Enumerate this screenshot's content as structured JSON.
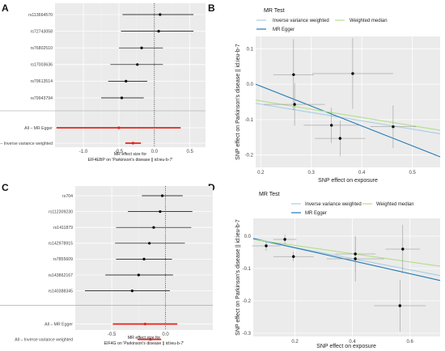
{
  "colors": {
    "panel_bg": "#ebebeb",
    "grid_major": "#ffffff",
    "snp_line": "#000000",
    "mr_line": "#e8221a",
    "ivw": "#a6cee3",
    "egger": "#1f78b4",
    "wm": "#b2df8a"
  },
  "panel_letters": {
    "a": "A",
    "b": "B",
    "c": "C",
    "d": "D"
  },
  "chart_data": [
    {
      "id": "A",
      "type": "forest",
      "xlabel_line1": "MR effect size for",
      "xlabel_line2": "EIF4EBP on 'Parkinson's disease || id:ieu-b-7'",
      "xlim": [
        -1.4,
        0.72
      ],
      "xticks": [
        -1.0,
        -0.5,
        0.0,
        0.5
      ],
      "xtick_labels": [
        "-1.0",
        "-0.5",
        "0.0",
        "0.5"
      ],
      "snps": [
        {
          "label": "rs113664570",
          "est": 0.08,
          "lo": -0.45,
          "hi": 0.55
        },
        {
          "label": "rs72743058",
          "est": 0.06,
          "lo": -0.47,
          "hi": 0.55
        },
        {
          "label": "rs76802510",
          "est": -0.18,
          "lo": -0.5,
          "hi": 0.12
        },
        {
          "label": "rs17003636",
          "est": -0.24,
          "lo": -0.62,
          "hi": 0.12
        },
        {
          "label": "rs79613514",
          "est": -0.4,
          "lo": -0.65,
          "hi": -0.1
        },
        {
          "label": "rs79943794",
          "est": -0.46,
          "lo": -0.75,
          "hi": -0.15
        }
      ],
      "summary": [
        {
          "label": "All – MR Egger",
          "est": -0.5,
          "lo": -1.38,
          "hi": 0.37
        },
        {
          "label": "All – Inverse variance weighted",
          "est": -0.3,
          "lo": -0.41,
          "hi": -0.19
        }
      ]
    },
    {
      "id": "B",
      "type": "scatter",
      "legend_title": "MR Test",
      "legend": [
        "Inverse variance weighted",
        "MR Egger",
        "Weighted median"
      ],
      "xlabel": "SNP effect on exposure",
      "ylabel": "SNP effect on Parkinson's disease || id:ieu-b-7",
      "xlim": [
        0.19,
        0.555
      ],
      "ylim": [
        -0.235,
        0.135
      ],
      "xticks": [
        0.2,
        0.3,
        0.4,
        0.5
      ],
      "xtick_labels": [
        "0.2",
        "0.3",
        "0.4",
        "0.5"
      ],
      "yticks": [
        0.1,
        0.0,
        -0.1,
        -0.2
      ],
      "ytick_labels": [
        "0.1",
        "0.0",
        "-0.1",
        "-0.2"
      ],
      "points": [
        {
          "x": 0.265,
          "y": 0.027,
          "xerr": 0.04,
          "yerr": 0.1
        },
        {
          "x": 0.267,
          "y": -0.057,
          "xerr": 0.06,
          "yerr": 0.06
        },
        {
          "x": 0.382,
          "y": 0.03,
          "xerr": 0.08,
          "yerr": 0.1
        },
        {
          "x": 0.34,
          "y": -0.116,
          "xerr": 0.055,
          "yerr": 0.05
        },
        {
          "x": 0.357,
          "y": -0.153,
          "xerr": 0.05,
          "yerr": 0.05
        },
        {
          "x": 0.462,
          "y": -0.12,
          "xerr": 0.045,
          "yerr": 0.06
        }
      ],
      "lines": [
        {
          "name": "Inverse variance weighted",
          "x0": 0.19,
          "y0": -0.054,
          "x1": 0.555,
          "y1": -0.14
        },
        {
          "name": "MR Egger",
          "x0": 0.19,
          "y0": 0.0,
          "x1": 0.555,
          "y1": -0.205
        },
        {
          "name": "Weighted median",
          "x0": 0.19,
          "y0": -0.045,
          "x1": 0.555,
          "y1": -0.13
        }
      ]
    },
    {
      "id": "C",
      "type": "forest",
      "xlabel_line1": "MR effect size for",
      "xlabel_line2": "EIF4G on 'Parkinson's disease || id:ieu-b-7'",
      "xlim": [
        -0.84,
        0.44
      ],
      "xticks": [
        -0.5,
        0.0
      ],
      "xtick_labels": [
        "-0.5",
        "0.0"
      ],
      "snps": [
        {
          "label": "rs704",
          "est": -0.03,
          "lo": -0.22,
          "hi": 0.16
        },
        {
          "label": "rs112309230",
          "est": -0.05,
          "lo": -0.35,
          "hi": 0.25
        },
        {
          "label": "rs1411879",
          "est": -0.11,
          "lo": -0.46,
          "hi": 0.24
        },
        {
          "label": "rs142978915",
          "est": -0.15,
          "lo": -0.47,
          "hi": 0.18
        },
        {
          "label": "rs7855609",
          "est": -0.2,
          "lo": -0.46,
          "hi": 0.06
        },
        {
          "label": "rs143862167",
          "est": -0.25,
          "lo": -0.56,
          "hi": 0.07
        },
        {
          "label": "rs140388345",
          "est": -0.31,
          "lo": -0.75,
          "hi": 0.04
        }
      ],
      "summary": [
        {
          "label": "All – MR Egger",
          "est": -0.19,
          "lo": -0.49,
          "hi": 0.11
        },
        {
          "label": "All – Inverse variance weighted",
          "est": -0.14,
          "lo": -0.26,
          "hi": -0.04
        }
      ]
    },
    {
      "id": "D",
      "type": "scatter",
      "legend_title": "MR Test",
      "legend": [
        "Inverse variance weighted",
        "MR Egger",
        "Weighted median"
      ],
      "xlabel": "SNP effect on exposure",
      "ylabel": "SNP effect on Parkinson's disease || id:ieu-b-7",
      "xlim": [
        0.055,
        0.705
      ],
      "ylim": [
        -0.31,
        0.055
      ],
      "xticks": [
        0.2,
        0.4,
        0.6
      ],
      "xtick_labels": [
        "0.2",
        "0.4",
        "0.6"
      ],
      "yticks": [
        0.0,
        -0.1,
        -0.2,
        -0.3
      ],
      "ytick_labels": [
        "0.0",
        "-0.1",
        "-0.2",
        "-0.3"
      ],
      "points": [
        {
          "x": 0.1,
          "y": -0.03,
          "xerr": 0.05,
          "yerr": 0.015
        },
        {
          "x": 0.165,
          "y": -0.01,
          "xerr": 0.04,
          "yerr": 0.015
        },
        {
          "x": 0.195,
          "y": -0.063,
          "xerr": 0.07,
          "yerr": 0.015
        },
        {
          "x": 0.41,
          "y": -0.055,
          "xerr": 0.07,
          "yerr": 0.055
        },
        {
          "x": 0.41,
          "y": -0.07,
          "xerr": 0.1,
          "yerr": 0.07
        },
        {
          "x": 0.575,
          "y": -0.04,
          "xerr": 0.06,
          "yerr": 0.075
        },
        {
          "x": 0.565,
          "y": -0.215,
          "xerr": 0.09,
          "yerr": 0.08
        }
      ],
      "lines": [
        {
          "name": "Inverse variance weighted",
          "x0": 0.055,
          "y0": -0.01,
          "x1": 0.705,
          "y1": -0.122
        },
        {
          "name": "MR Egger",
          "x0": 0.055,
          "y0": -0.007,
          "x1": 0.705,
          "y1": -0.137
        },
        {
          "name": "Weighted median",
          "x0": 0.055,
          "y0": -0.01,
          "x1": 0.705,
          "y1": -0.093
        }
      ]
    }
  ]
}
